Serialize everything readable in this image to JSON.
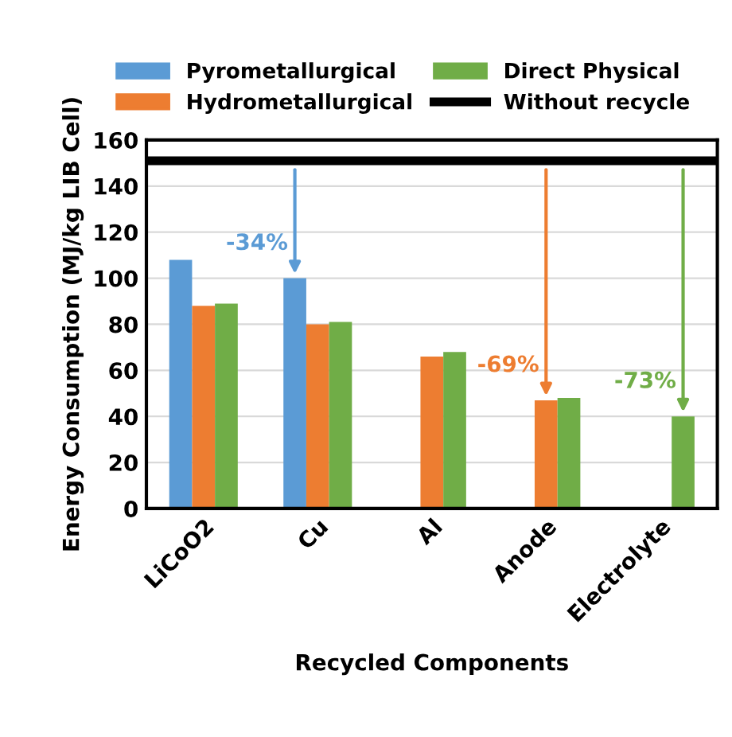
{
  "chart_data": {
    "type": "bar",
    "xlabel": "Recycled Components",
    "ylabel": "Energy Consumption (MJ/kg LIB Cell)",
    "categories": [
      "LiCoO2",
      "Cu",
      "Al",
      "Anode",
      "Electrolyte"
    ],
    "series": [
      {
        "name": "Pyrometallurgical",
        "color": "#5b9bd5",
        "values": [
          108,
          100,
          null,
          null,
          null
        ]
      },
      {
        "name": "Hydrometallurgical",
        "color": "#ed7d31",
        "values": [
          88,
          80,
          66,
          47,
          null
        ]
      },
      {
        "name": "Direct Physical",
        "color": "#70ad47",
        "values": [
          89,
          81,
          68,
          48,
          40
        ]
      }
    ],
    "ref_lines": [
      {
        "axis": "y",
        "value": 151,
        "label": "Without recycle",
        "color": "#000000"
      }
    ],
    "annotations": [
      "-34%",
      "-69%",
      "-73%"
    ],
    "ylim": [
      0,
      160
    ],
    "yticks": [
      0,
      20,
      40,
      60,
      80,
      100,
      120,
      140,
      160
    ],
    "grid": "y",
    "legend": "top"
  }
}
